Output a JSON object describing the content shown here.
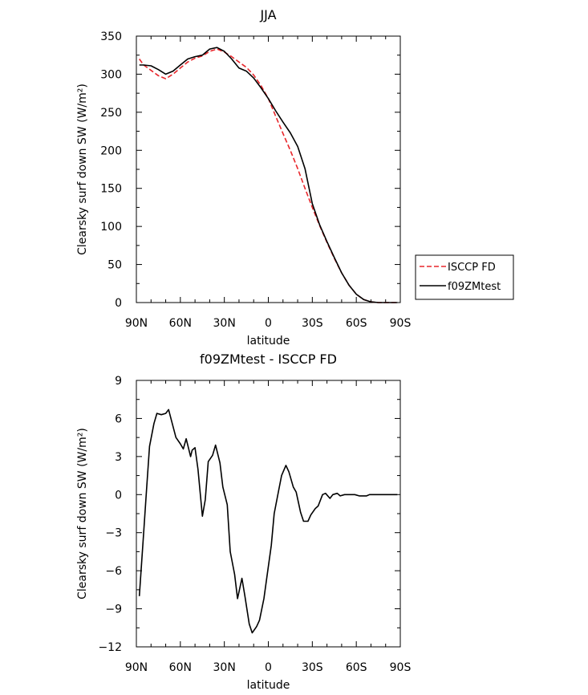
{
  "chart_data": [
    {
      "type": "line",
      "title": "JJA",
      "xlabel": "latitude",
      "ylabel": "Clearsky surf down SW (W/m²)",
      "xlim": [
        90,
        -90
      ],
      "ylim": [
        0,
        350
      ],
      "xticks": [
        90,
        60,
        30,
        0,
        -30,
        -60,
        -90
      ],
      "xtick_labels": [
        "90N",
        "60N",
        "30N",
        "0",
        "30S",
        "60S",
        "90S"
      ],
      "yticks": [
        0,
        50,
        100,
        150,
        200,
        250,
        300,
        350
      ],
      "ytick_labels": [
        "0",
        "50",
        "100",
        "150",
        "200",
        "250",
        "300",
        "350"
      ],
      "legend": {
        "placement": "right-outside"
      },
      "series": [
        {
          "name": "ISCCP FD",
          "color": "#e8262b",
          "style": "dashed",
          "x": [
            88,
            85,
            80,
            75,
            70,
            65,
            60,
            55,
            50,
            45,
            40,
            35,
            30,
            25,
            20,
            15,
            10,
            5,
            0,
            -5,
            -10,
            -15,
            -20,
            -25,
            -30,
            -35,
            -40,
            -45,
            -50,
            -55,
            -60,
            -65,
            -70,
            -75,
            -80,
            -85,
            -88
          ],
          "y": [
            320,
            312,
            305,
            298,
            294,
            300,
            308,
            316,
            321,
            324,
            330,
            333,
            329,
            323,
            316,
            309,
            299,
            285,
            268,
            245,
            222,
            200,
            176,
            150,
            125,
            101,
            79,
            58,
            39,
            23,
            11,
            4,
            1,
            0,
            0,
            0,
            0
          ]
        },
        {
          "name": "f09ZMtest",
          "color": "#000000",
          "style": "solid",
          "x": [
            88,
            85,
            80,
            75,
            70,
            65,
            60,
            55,
            50,
            45,
            40,
            35,
            30,
            25,
            20,
            15,
            10,
            5,
            0,
            -5,
            -10,
            -15,
            -20,
            -25,
            -30,
            -35,
            -40,
            -45,
            -50,
            -55,
            -60,
            -65,
            -70,
            -75,
            -80,
            -85,
            -88
          ],
          "y": [
            312,
            312,
            311,
            306,
            300,
            304,
            312,
            320,
            323,
            325,
            333,
            335,
            330,
            320,
            308,
            304,
            295,
            282,
            268,
            252,
            237,
            223,
            205,
            176,
            130,
            102,
            80,
            59,
            39,
            23,
            11,
            4,
            1,
            0,
            0,
            0,
            0
          ]
        }
      ]
    },
    {
      "type": "line",
      "title": "f09ZMtest - ISCCP FD",
      "xlabel": "latitude",
      "ylabel": "Clearsky surf down SW (W/m²)",
      "xlim": [
        90,
        -90
      ],
      "ylim": [
        -12,
        9
      ],
      "xticks": [
        90,
        60,
        30,
        0,
        -30,
        -60,
        -90
      ],
      "xtick_labels": [
        "90N",
        "60N",
        "30N",
        "0",
        "30S",
        "60S",
        "90S"
      ],
      "yticks": [
        -12,
        -9,
        -6,
        -3,
        0,
        3,
        6,
        9
      ],
      "ytick_labels": [
        "−12",
        "−9",
        "−6",
        "−3",
        "0",
        "3",
        "6",
        "9"
      ],
      "series": [
        {
          "color": "#000000",
          "style": "solid",
          "x": [
            88,
            85,
            83,
            81,
            78,
            76,
            73,
            70,
            68,
            66,
            63,
            60,
            58,
            56,
            53,
            52,
            50,
            48,
            45,
            43,
            41,
            38,
            36,
            33,
            31,
            28,
            26,
            23,
            21,
            18,
            16,
            13,
            11,
            8,
            6,
            3,
            1,
            -2,
            -4,
            -7,
            -9,
            -12,
            -14,
            -17,
            -19,
            -22,
            -24,
            -27,
            -29,
            -32,
            -34,
            -37,
            -39,
            -42,
            -44,
            -47,
            -49,
            -52,
            -54,
            -57,
            -59,
            -62,
            -64,
            -67,
            -69,
            -72,
            -74,
            -77,
            -79,
            -82,
            -84,
            -88
          ],
          "y": [
            -8.0,
            -3.0,
            0.5,
            3.8,
            5.6,
            6.4,
            6.3,
            6.4,
            6.7,
            5.8,
            4.5,
            4.0,
            3.6,
            4.4,
            3.0,
            3.5,
            3.7,
            2.0,
            -1.7,
            -0.4,
            2.6,
            3.1,
            3.9,
            2.5,
            0.6,
            -0.8,
            -4.5,
            -6.3,
            -8.2,
            -6.6,
            -8.0,
            -10.2,
            -10.9,
            -10.4,
            -9.9,
            -8.2,
            -6.5,
            -4.0,
            -1.5,
            0.3,
            1.5,
            2.3,
            1.8,
            0.6,
            0.2,
            -1.4,
            -2.1,
            -2.1,
            -1.6,
            -1.1,
            -0.9,
            0.0,
            0.1,
            -0.3,
            0.0,
            0.1,
            -0.1,
            0.0,
            0.0,
            0.0,
            0.0,
            -0.1,
            -0.1,
            -0.1,
            0.0,
            0.0,
            0.0,
            0.0,
            0.0,
            0.0,
            0.0,
            0.0
          ]
        }
      ]
    }
  ]
}
